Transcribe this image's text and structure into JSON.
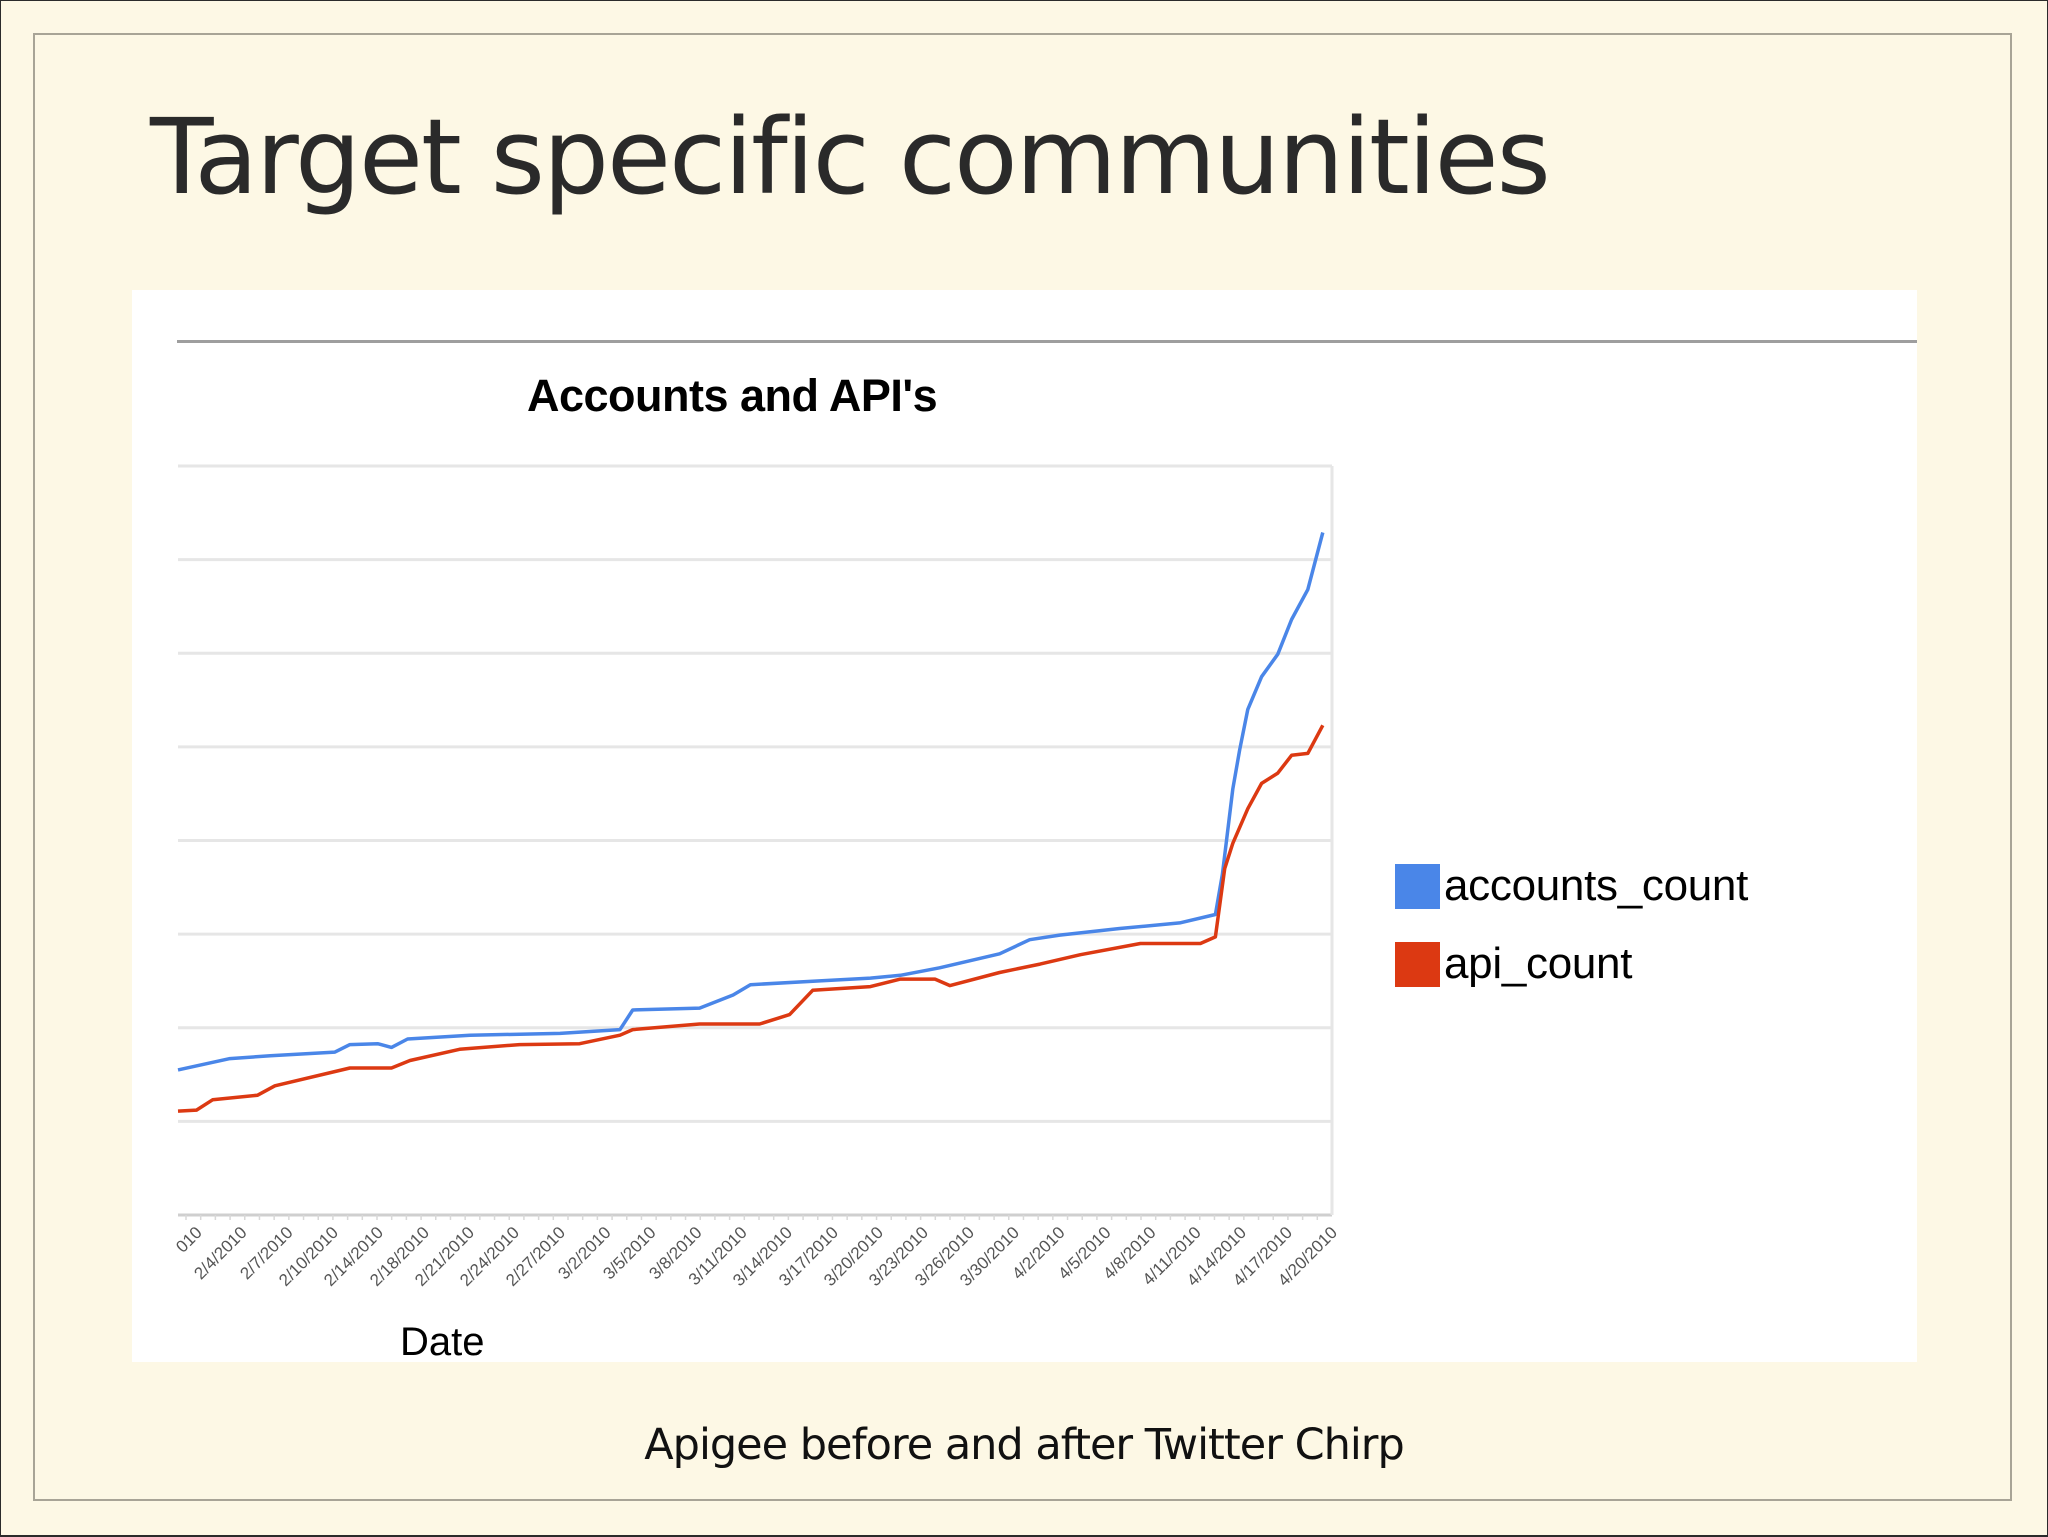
{
  "slide": {
    "title": "Target specific communities",
    "caption": "Apigee before and after Twitter Chirp",
    "background": "#fdf8e5"
  },
  "chart_data": {
    "type": "line",
    "title": "Accounts and API's",
    "xlabel": "Date",
    "ylabel": "",
    "y_tick_labels_visible": false,
    "gridlines": 9,
    "ylim": [
      0,
      8
    ],
    "grid": true,
    "legend_position": "right",
    "categories": [
      "010",
      "2/4/2010",
      "2/7/2010",
      "2/10/2010",
      "2/14/2010",
      "2/18/2010",
      "2/21/2010",
      "2/24/2010",
      "2/27/2010",
      "3/2/2010",
      "3/5/2010",
      "3/8/2010",
      "3/11/2010",
      "3/14/2010",
      "3/17/2010",
      "3/20/2010",
      "3/23/2010",
      "3/26/2010",
      "3/30/2010",
      "4/2/2010",
      "4/5/2010",
      "4/8/2010",
      "4/11/2010",
      "4/14/2010",
      "4/17/2010",
      "4/20/2010"
    ],
    "series": [
      {
        "name": "accounts_count",
        "color": "#4a86e8",
        "points": [
          [
            0,
            1.55
          ],
          [
            0.045,
            1.67
          ],
          [
            0.08,
            1.7
          ],
          [
            0.136,
            1.74
          ],
          [
            0.149,
            1.82
          ],
          [
            0.173,
            1.83
          ],
          [
            0.185,
            1.79
          ],
          [
            0.199,
            1.88
          ],
          [
            0.253,
            1.92
          ],
          [
            0.331,
            1.94
          ],
          [
            0.383,
            1.98
          ],
          [
            0.394,
            2.19
          ],
          [
            0.452,
            2.21
          ],
          [
            0.481,
            2.35
          ],
          [
            0.496,
            2.46
          ],
          [
            0.556,
            2.5
          ],
          [
            0.6,
            2.53
          ],
          [
            0.626,
            2.56
          ],
          [
            0.66,
            2.64
          ],
          [
            0.712,
            2.79
          ],
          [
            0.738,
            2.94
          ],
          [
            0.764,
            2.99
          ],
          [
            0.816,
            3.06
          ],
          [
            0.868,
            3.12
          ],
          [
            0.899,
            3.21
          ],
          [
            0.905,
            3.64
          ],
          [
            0.914,
            4.55
          ],
          [
            0.92,
            4.97
          ],
          [
            0.927,
            5.4
          ],
          [
            0.939,
            5.75
          ],
          [
            0.953,
            5.99
          ],
          [
            0.965,
            6.36
          ],
          [
            0.979,
            6.68
          ],
          [
            0.992,
            7.29
          ]
        ]
      },
      {
        "name": "api_count",
        "color": "#dc3912",
        "points": [
          [
            0,
            1.11
          ],
          [
            0.016,
            1.12
          ],
          [
            0.03,
            1.23
          ],
          [
            0.069,
            1.28
          ],
          [
            0.084,
            1.38
          ],
          [
            0.149,
            1.57
          ],
          [
            0.185,
            1.57
          ],
          [
            0.201,
            1.65
          ],
          [
            0.244,
            1.77
          ],
          [
            0.296,
            1.82
          ],
          [
            0.348,
            1.83
          ],
          [
            0.383,
            1.92
          ],
          [
            0.394,
            1.98
          ],
          [
            0.452,
            2.04
          ],
          [
            0.504,
            2.04
          ],
          [
            0.53,
            2.14
          ],
          [
            0.55,
            2.4
          ],
          [
            0.6,
            2.44
          ],
          [
            0.626,
            2.52
          ],
          [
            0.656,
            2.52
          ],
          [
            0.669,
            2.45
          ],
          [
            0.712,
            2.59
          ],
          [
            0.747,
            2.68
          ],
          [
            0.782,
            2.78
          ],
          [
            0.834,
            2.9
          ],
          [
            0.886,
            2.9
          ],
          [
            0.899,
            2.97
          ],
          [
            0.907,
            3.7
          ],
          [
            0.914,
            3.97
          ],
          [
            0.927,
            4.34
          ],
          [
            0.939,
            4.61
          ],
          [
            0.953,
            4.72
          ],
          [
            0.965,
            4.91
          ],
          [
            0.979,
            4.93
          ],
          [
            0.992,
            5.23
          ]
        ]
      }
    ]
  },
  "legend": {
    "items": [
      {
        "label": "accounts_count",
        "color": "#4a86e8"
      },
      {
        "label": "api_count",
        "color": "#dc3912"
      }
    ]
  }
}
